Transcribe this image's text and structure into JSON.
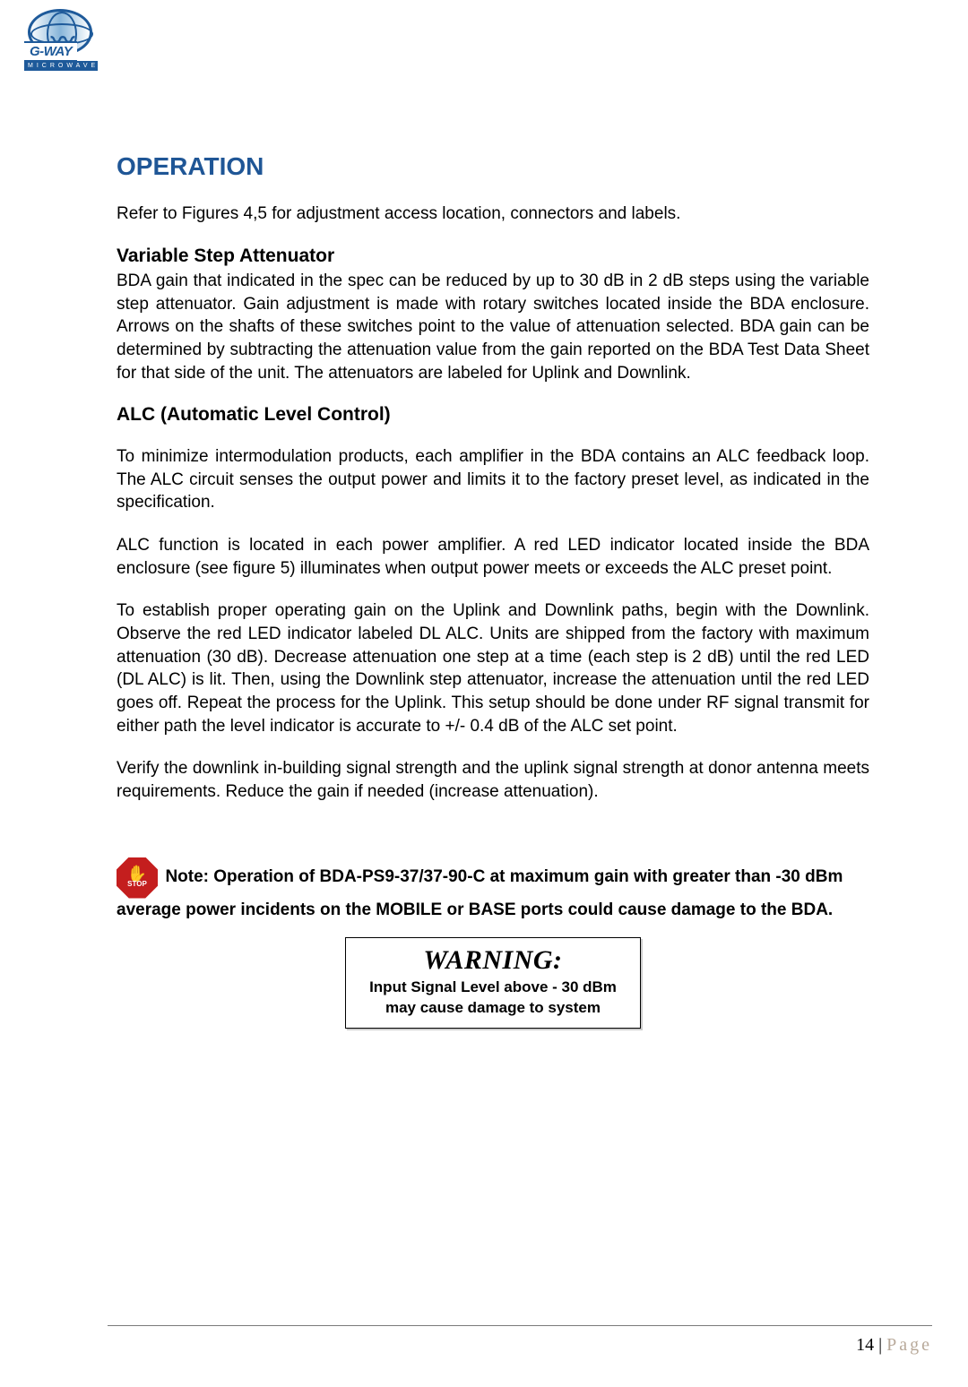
{
  "logo": {
    "brand_top": "G-WAY",
    "brand_bottom": "MICROWAVE"
  },
  "heading": "OPERATION",
  "intro": "Refer to Figures 4,5 for adjustment access location, connectors and labels.",
  "section1": {
    "title": "Variable Step Attenuator",
    "body": "BDA gain that indicated in the spec can be reduced by up to 30 dB in 2 dB steps using the variable step attenuator. Gain adjustment is made with rotary switches located inside the BDA enclosure. Arrows on the shafts of these switches point to the value of attenuation selected. BDA gain can be determined by subtracting the attenuation value from the gain reported on the BDA Test Data Sheet for that side of the unit.  The attenuators are labeled for Uplink and Downlink."
  },
  "section2": {
    "title": "ALC (Automatic Level Control)",
    "p1": "To minimize intermodulation products, each amplifier in the BDA contains an ALC feedback loop. The ALC circuit senses the output power and limits it to the factory preset level, as indicated in the specification.",
    "p2": "ALC function is located in each power amplifier. A red LED indicator located inside the BDA enclosure (see figure 5) illuminates when output power meets or exceeds the ALC preset point.",
    "p3": "To establish proper operating gain on the Uplink and Downlink paths, begin with the Downlink. Observe the red LED indicator labeled DL ALC. Units are shipped from the factory with maximum attenuation (30 dB). Decrease attenuation one step at a time (each step is 2 dB) until the red LED (DL ALC) is lit. Then, using the Downlink step attenuator, increase the attenuation until the red LED goes off. Repeat the process for the Uplink. This setup should be done under RF signal transmit for either path the level indicator is accurate to +/- 0.4 dB of the ALC set point.",
    "p4": "Verify the downlink in-building signal strength and the uplink signal strength at donor antenna meets requirements. Reduce the gain if needed (increase attenuation)."
  },
  "note": {
    "stop_label": "STOP",
    "text": "Note: Operation of BDA-PS9-37/37-90-C  at maximum gain with greater than -30 dBm average power incidents on the MOBILE or BASE ports could cause damage to the BDA."
  },
  "warning": {
    "title": "WARNING:",
    "body": "Input Signal Level above - 30 dBm may cause damage to system"
  },
  "footer": {
    "page_num": "14",
    "sep": " | ",
    "page_label": "Page"
  },
  "colors": {
    "heading": "#1f5696",
    "logo_blue": "#1e5a9a",
    "stop_red": "#c41e1e",
    "footer_grey": "#b8a99a"
  }
}
